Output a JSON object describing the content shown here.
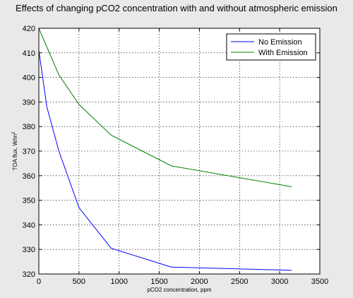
{
  "chart_data": {
    "type": "line",
    "title": "Effects of changing pCO2 concentration with and without atmospheric emission",
    "xlabel": "pCO2 concentration, ppm",
    "ylabel_main": "TOA flux, W/m",
    "ylabel_sup": "2",
    "xlim": [
      0,
      3500
    ],
    "ylim": [
      320,
      420
    ],
    "xticks": [
      0,
      500,
      1000,
      1500,
      2000,
      2500,
      3000,
      3500
    ],
    "yticks": [
      320,
      330,
      340,
      350,
      360,
      370,
      380,
      390,
      400,
      410,
      420
    ],
    "grid": true,
    "legend_position": "top-right",
    "series": [
      {
        "name": "No Emission",
        "color": "#0000ff",
        "x": [
          0,
          100,
          250,
          500,
          900,
          1650,
          3150
        ],
        "y": [
          411,
          388,
          370,
          347,
          330.5,
          322.8,
          321.5
        ]
      },
      {
        "name": "With Emission",
        "color": "#008000",
        "x": [
          0,
          250,
          500,
          900,
          1650,
          3150
        ],
        "y": [
          420,
          401,
          389,
          376.5,
          364,
          355.5
        ]
      }
    ]
  }
}
